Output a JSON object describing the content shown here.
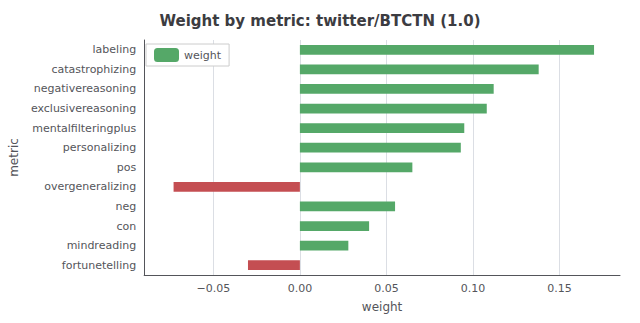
{
  "chart_data": {
    "type": "bar",
    "orientation": "horizontal",
    "title": "Weight by metric: twitter/BTCTN (1.0)",
    "xlabel": "weight",
    "ylabel": "metric",
    "categories": [
      "labeling",
      "catastrophizing",
      "negativereasoning",
      "exclusivereasoning",
      "mentalfilteringplus",
      "personalizing",
      "pos",
      "overgeneralizing",
      "neg",
      "con",
      "mindreading",
      "fortunetelling"
    ],
    "series": [
      {
        "name": "weight",
        "color": "#55a868",
        "colors": [
          "#55a868",
          "#55a868",
          "#55a868",
          "#55a868",
          "#55a868",
          "#55a868",
          "#55a868",
          "#c44e52",
          "#55a868",
          "#55a868",
          "#55a868",
          "#c44e52"
        ],
        "values": [
          0.17,
          0.138,
          0.112,
          0.108,
          0.095,
          0.093,
          0.065,
          -0.073,
          0.055,
          0.04,
          0.028,
          -0.03
        ]
      }
    ],
    "xlim": [
      -0.09,
      0.185
    ],
    "xticks": [
      {
        "value": -0.05,
        "label": "−0.05"
      },
      {
        "value": 0,
        "label": "0.00"
      },
      {
        "value": 0.05,
        "label": "0.05"
      },
      {
        "value": 0.1,
        "label": "0.10"
      },
      {
        "value": 0.15,
        "label": "0.15"
      }
    ],
    "grid": true,
    "legend": "upper left"
  }
}
